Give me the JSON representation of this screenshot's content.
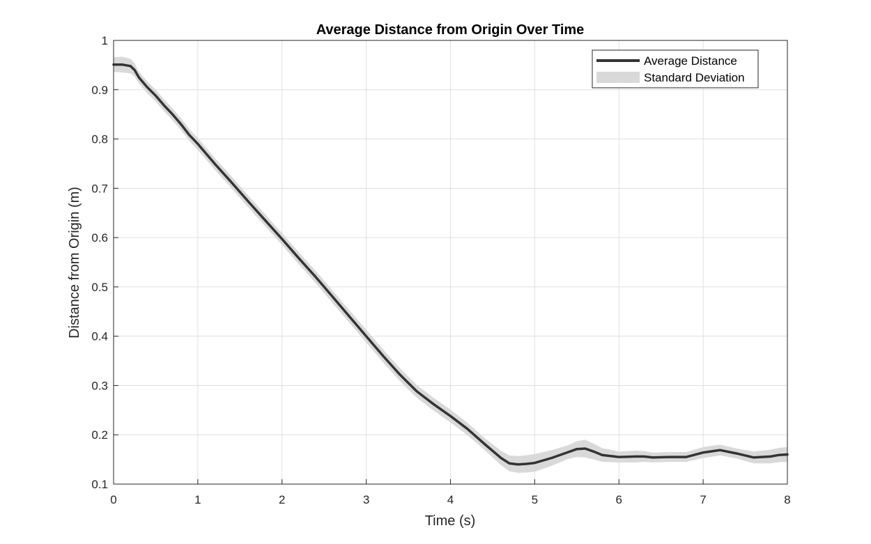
{
  "chart_data": {
    "type": "line",
    "title": "Average Distance from Origin Over Time",
    "xlabel": "Time (s)",
    "ylabel": "Distance from Origin (m)",
    "xlim": [
      0,
      8
    ],
    "ylim": [
      0.1,
      1
    ],
    "xticks": [
      "0",
      "1",
      "2",
      "3",
      "4",
      "5",
      "6",
      "7",
      "8"
    ],
    "yticks": [
      "0.1",
      "0.2",
      "0.3",
      "0.4",
      "0.5",
      "0.6",
      "0.7",
      "0.8",
      "0.9",
      "1"
    ],
    "grid": true,
    "legend_position": "top-right",
    "series": [
      {
        "name": "Average Distance",
        "color": "#333333",
        "x": [
          0,
          0.1,
          0.2,
          0.25,
          0.3,
          0.4,
          0.5,
          0.6,
          0.7,
          0.8,
          0.9,
          1.0,
          1.2,
          1.4,
          1.6,
          1.8,
          2.0,
          2.2,
          2.4,
          2.6,
          2.8,
          3.0,
          3.2,
          3.4,
          3.6,
          3.8,
          4.0,
          4.2,
          4.4,
          4.6,
          4.7,
          4.8,
          4.9,
          5.0,
          5.2,
          5.4,
          5.5,
          5.6,
          5.7,
          5.8,
          6.0,
          6.2,
          6.3,
          6.4,
          6.6,
          6.8,
          7.0,
          7.2,
          7.4,
          7.6,
          7.8,
          7.9,
          8.0
        ],
        "y": [
          0.951,
          0.951,
          0.948,
          0.94,
          0.925,
          0.905,
          0.888,
          0.868,
          0.85,
          0.83,
          0.808,
          0.79,
          0.75,
          0.712,
          0.673,
          0.635,
          0.597,
          0.558,
          0.52,
          0.48,
          0.44,
          0.4,
          0.36,
          0.322,
          0.288,
          0.262,
          0.238,
          0.212,
          0.182,
          0.153,
          0.142,
          0.14,
          0.141,
          0.143,
          0.153,
          0.165,
          0.171,
          0.172,
          0.166,
          0.159,
          0.155,
          0.156,
          0.156,
          0.154,
          0.155,
          0.155,
          0.164,
          0.169,
          0.162,
          0.154,
          0.156,
          0.159,
          0.16
        ]
      },
      {
        "name": "Standard Deviation",
        "color": "#d9d9d9",
        "x": [
          0,
          0.1,
          0.2,
          0.3,
          0.5,
          1.0,
          2.0,
          3.0,
          3.6,
          4.0,
          4.4,
          4.7,
          4.8,
          5.0,
          5.2,
          5.4,
          5.6,
          5.8,
          6.0,
          6.2,
          6.4,
          6.6,
          6.8,
          7.0,
          7.2,
          7.4,
          7.6,
          7.8,
          8.0
        ],
        "spread": [
          0.015,
          0.016,
          0.015,
          0.012,
          0.012,
          0.012,
          0.012,
          0.013,
          0.013,
          0.013,
          0.012,
          0.016,
          0.017,
          0.018,
          0.016,
          0.014,
          0.018,
          0.014,
          0.011,
          0.012,
          0.01,
          0.01,
          0.01,
          0.011,
          0.011,
          0.01,
          0.012,
          0.014,
          0.015
        ]
      }
    ]
  }
}
